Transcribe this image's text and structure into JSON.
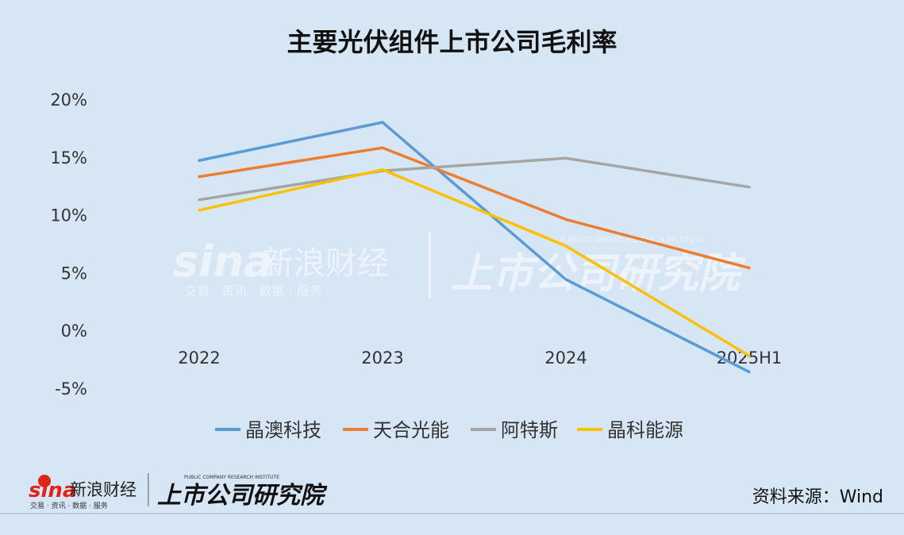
{
  "chart_data": {
    "type": "line",
    "title": "主要光伏组件上市公司毛利率",
    "categories": [
      "2022",
      "2023",
      "2024",
      "2025H1"
    ],
    "y_ticks": [
      "20%",
      "15%",
      "10%",
      "5%",
      "0%",
      "-5%"
    ],
    "ylim": [
      -5,
      20
    ],
    "grid": false,
    "legend_position": "bottom",
    "series": [
      {
        "name": "晶澳科技",
        "color": "#5b9bd5",
        "values": [
          14.7,
          18.0,
          4.4,
          -3.6
        ]
      },
      {
        "name": "天合光能",
        "color": "#ed7d31",
        "values": [
          13.3,
          15.8,
          9.6,
          5.4
        ]
      },
      {
        "name": "阿特斯",
        "color": "#a5a5a5",
        "values": [
          11.3,
          13.8,
          14.9,
          12.4
        ]
      },
      {
        "name": "晶科能源",
        "color": "#ffc000",
        "values": [
          10.4,
          13.9,
          7.3,
          -2.2
        ]
      }
    ]
  },
  "watermark": {
    "brand": "sina",
    "brand_cn": "新浪财经",
    "brand_sub": "交易 · 资讯 · 数据 · 服务",
    "institute": "上市公司研究院",
    "institute_en": "PUBLIC COMPANY RESEARCH INSTITUTE"
  },
  "source": "资料来源：Wind"
}
